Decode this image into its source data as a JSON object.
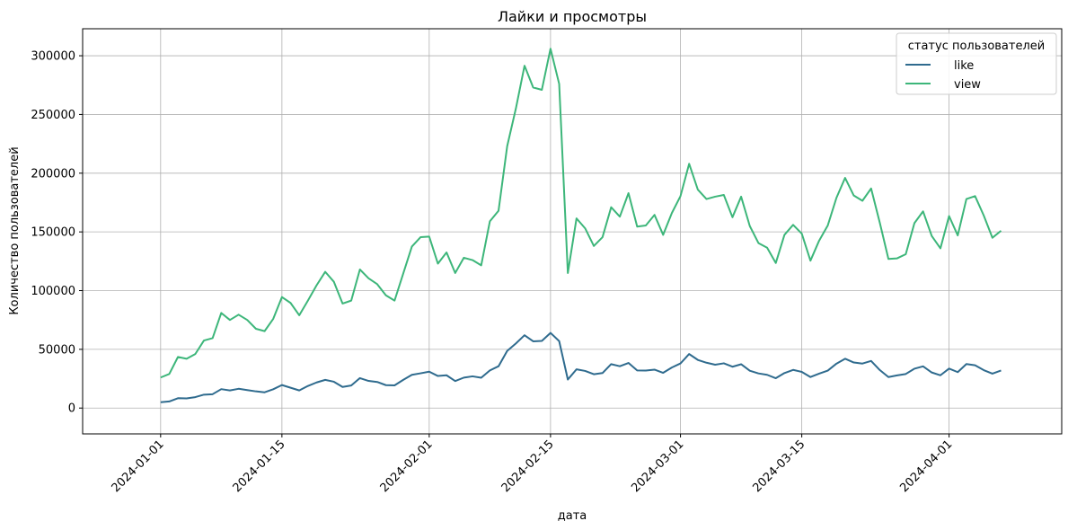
{
  "chart_data": {
    "type": "line",
    "title": "Лайки и просмотры",
    "xlabel": "дата",
    "ylabel": "Количество пользователей",
    "x_start": "2024-01-01",
    "x_end": "2024-04-06",
    "xlim": [
      "2023-12-23",
      "2024-04-14"
    ],
    "ylim": [
      -22000,
      323000
    ],
    "x_ticks": [
      "2024-01-01",
      "2024-01-15",
      "2024-02-01",
      "2024-02-15",
      "2024-03-01",
      "2024-03-15",
      "2024-04-01"
    ],
    "y_ticks": [
      0,
      50000,
      100000,
      150000,
      200000,
      250000,
      300000
    ],
    "y_tick_labels": [
      "0",
      "50000",
      "100000",
      "150000",
      "200000",
      "250000",
      "300000"
    ],
    "grid": true,
    "legend": {
      "title": "статус пользователей",
      "position": "top-right"
    },
    "series": [
      {
        "name": "like",
        "color": "#2f6b8e",
        "values": [
          5000,
          5600,
          8400,
          8200,
          9300,
          11400,
          11800,
          16100,
          15000,
          16400,
          15300,
          14200,
          13400,
          16000,
          19600,
          17300,
          15000,
          18800,
          21800,
          24000,
          22400,
          18000,
          19200,
          25500,
          23100,
          22200,
          19500,
          19300,
          24000,
          28300,
          29600,
          31000,
          27300,
          27900,
          23000,
          25900,
          27000,
          25800,
          32000,
          35600,
          48700,
          55000,
          62000,
          56800,
          57200,
          64000,
          57000,
          24300,
          33000,
          31600,
          28800,
          29800,
          37400,
          35600,
          38400,
          32000,
          31900,
          32700,
          30000,
          34500,
          38000,
          46000,
          41000,
          38600,
          36900,
          38100,
          35200,
          37300,
          31800,
          29500,
          28300,
          25400,
          29800,
          32500,
          30800,
          26400,
          29300,
          31900,
          37800,
          42000,
          38800,
          37900,
          40100,
          32400,
          26400,
          27800,
          29000,
          33500,
          35500,
          30300,
          27900,
          33600,
          30600,
          37500,
          36400,
          32300,
          29300,
          32000
        ]
      },
      {
        "name": "view",
        "color": "#3db67a",
        "values": [
          26000,
          29000,
          43500,
          42000,
          46000,
          57500,
          59500,
          81000,
          75000,
          79500,
          75000,
          67500,
          65500,
          76000,
          94500,
          89500,
          79000,
          91500,
          104500,
          116000,
          107500,
          89000,
          91500,
          118000,
          110500,
          105500,
          96000,
          91500,
          114500,
          137500,
          145500,
          146000,
          123000,
          132500,
          115000,
          128000,
          126000,
          121500,
          159000,
          168000,
          223000,
          255000,
          291500,
          273000,
          271000,
          306000,
          276000,
          115000,
          161500,
          153000,
          138000,
          145500,
          171000,
          163000,
          183000,
          154500,
          155500,
          164500,
          147500,
          166000,
          180500,
          208000,
          186000,
          178000,
          180000,
          181500,
          162500,
          180000,
          155000,
          140500,
          136500,
          123500,
          147500,
          156000,
          148500,
          125500,
          142500,
          155500,
          179000,
          196000,
          181000,
          176500,
          187000,
          158000,
          127000,
          127500,
          131000,
          157500,
          167500,
          146500,
          136000,
          163500,
          147000,
          178000,
          180500,
          164000,
          145000,
          151000
        ]
      }
    ]
  }
}
